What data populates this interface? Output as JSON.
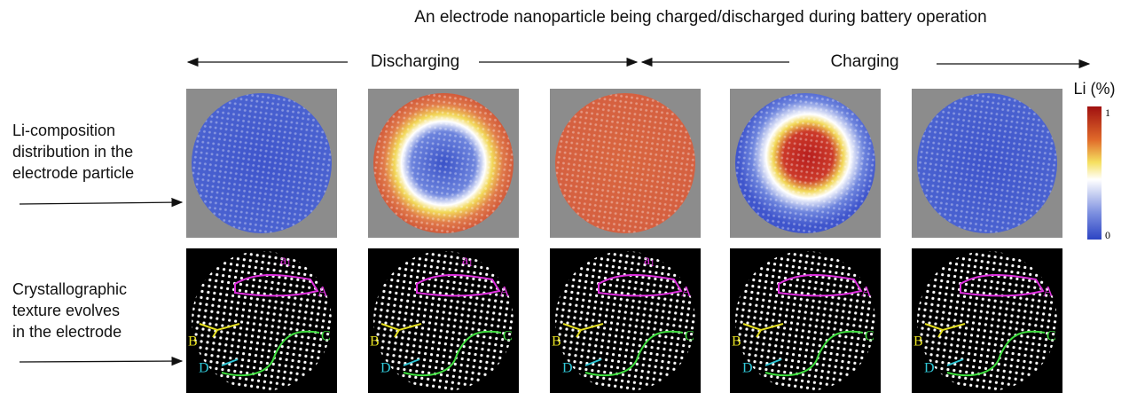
{
  "title": "An electrode nanoparticle being charged/discharged during battery operation",
  "phases": [
    "Discharging",
    "Charging"
  ],
  "rows": [
    {
      "lines": [
        "Li-composition",
        "distribution in the",
        "electrode particle"
      ]
    },
    {
      "lines": [
        "Crystallographic",
        "texture evolves",
        "in the electrode"
      ]
    }
  ],
  "colorbar": {
    "label": "Li (%)",
    "ticks": [
      1,
      0
    ]
  },
  "panels": [
    {
      "a1": {
        "letter": "a",
        "sub": "1"
      },
      "labels": [
        "A",
        "B",
        "C",
        "D"
      ]
    },
    {
      "a1": {
        "letter": "a",
        "sub": "1"
      },
      "labels": [
        "A",
        "B",
        "C",
        "D"
      ]
    },
    {
      "a1": {
        "letter": "a",
        "sub": "1"
      },
      "labels": [
        "A",
        "B",
        "C",
        "D"
      ]
    },
    {
      "labels": [
        "A",
        "B",
        "C",
        "D"
      ]
    },
    {
      "labels": [
        "A",
        "B",
        "C",
        "D"
      ]
    }
  ]
}
